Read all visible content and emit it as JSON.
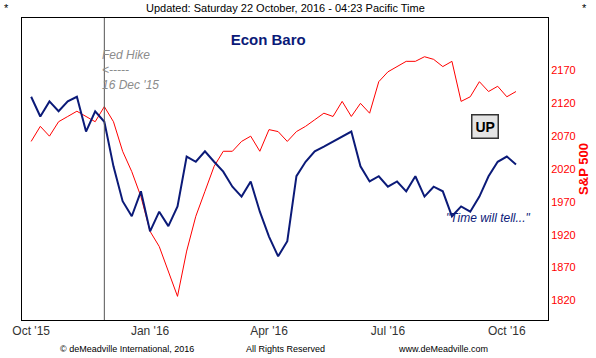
{
  "chart_data": {
    "type": "line",
    "title": "Econ Baro",
    "subtitle": "Updated: Saturday 22 October, 2016 - 04:23 Pacific Time",
    "y_label": "S&P 500",
    "categories": [
      "Oct '15",
      null,
      null,
      null,
      null,
      null,
      null,
      null,
      null,
      null,
      null,
      null,
      null,
      "Jan '16",
      null,
      null,
      null,
      null,
      null,
      null,
      null,
      null,
      null,
      null,
      null,
      null,
      "Apr '16",
      null,
      null,
      null,
      null,
      null,
      null,
      null,
      null,
      null,
      null,
      null,
      null,
      "Jul '16",
      null,
      null,
      null,
      null,
      null,
      null,
      null,
      null,
      null,
      null,
      null,
      null,
      "Oct '16",
      null
    ],
    "series": [
      {
        "name": "Econ Baro",
        "color": "#0b1a78",
        "values": [
          2130,
          2100,
          2123,
          2108,
          2123,
          2130,
          2077,
          2108,
          2092,
          2024,
          1971,
          1948,
          1986,
          1925,
          1955,
          1933,
          1963,
          2039,
          2031,
          2047,
          2031,
          2016,
          1993,
          1978,
          2001,
          1955,
          1917,
          1887,
          1910,
          2009,
          2031,
          2047,
          2054,
          2062,
          2070,
          2077,
          2024,
          2001,
          2009,
          1993,
          2001,
          1986,
          2009,
          1978,
          1993,
          1986,
          1948,
          1963,
          1955,
          1978,
          2009,
          2031,
          2039,
          2027
        ]
      },
      {
        "name": "S&P 500",
        "color": "#ff0000",
        "values": [
          2062,
          2085,
          2070,
          2092,
          2100,
          2108,
          2100,
          2092,
          2115,
          2092,
          2047,
          2016,
          1978,
          1925,
          1902,
          1864,
          1826,
          1895,
          1948,
          1986,
          2024,
          2047,
          2047,
          2062,
          2070,
          2047,
          2080,
          2077,
          2062,
          2077,
          2085,
          2095,
          2105,
          2100,
          2123,
          2100,
          2120,
          2105,
          2153,
          2168,
          2176,
          2184,
          2184,
          2191,
          2187,
          2176,
          2184,
          2123,
          2130,
          2153,
          2138,
          2146,
          2130,
          2138
        ]
      }
    ],
    "ylim": [
      1790,
      2250
    ],
    "yticks": [
      1820,
      1870,
      1920,
      1970,
      2020,
      2070,
      2120,
      2170
    ],
    "grid": false,
    "notes": {
      "corner": "*",
      "event": [
        "Fed Hike",
        "<-----",
        "16 Dec '15"
      ],
      "signal": "UP",
      "outlook": "\"Time will tell...\""
    },
    "footer": [
      "© deMeadville International, 2016",
      "All Rights Reserved",
      "www.deMeadville.com"
    ]
  }
}
